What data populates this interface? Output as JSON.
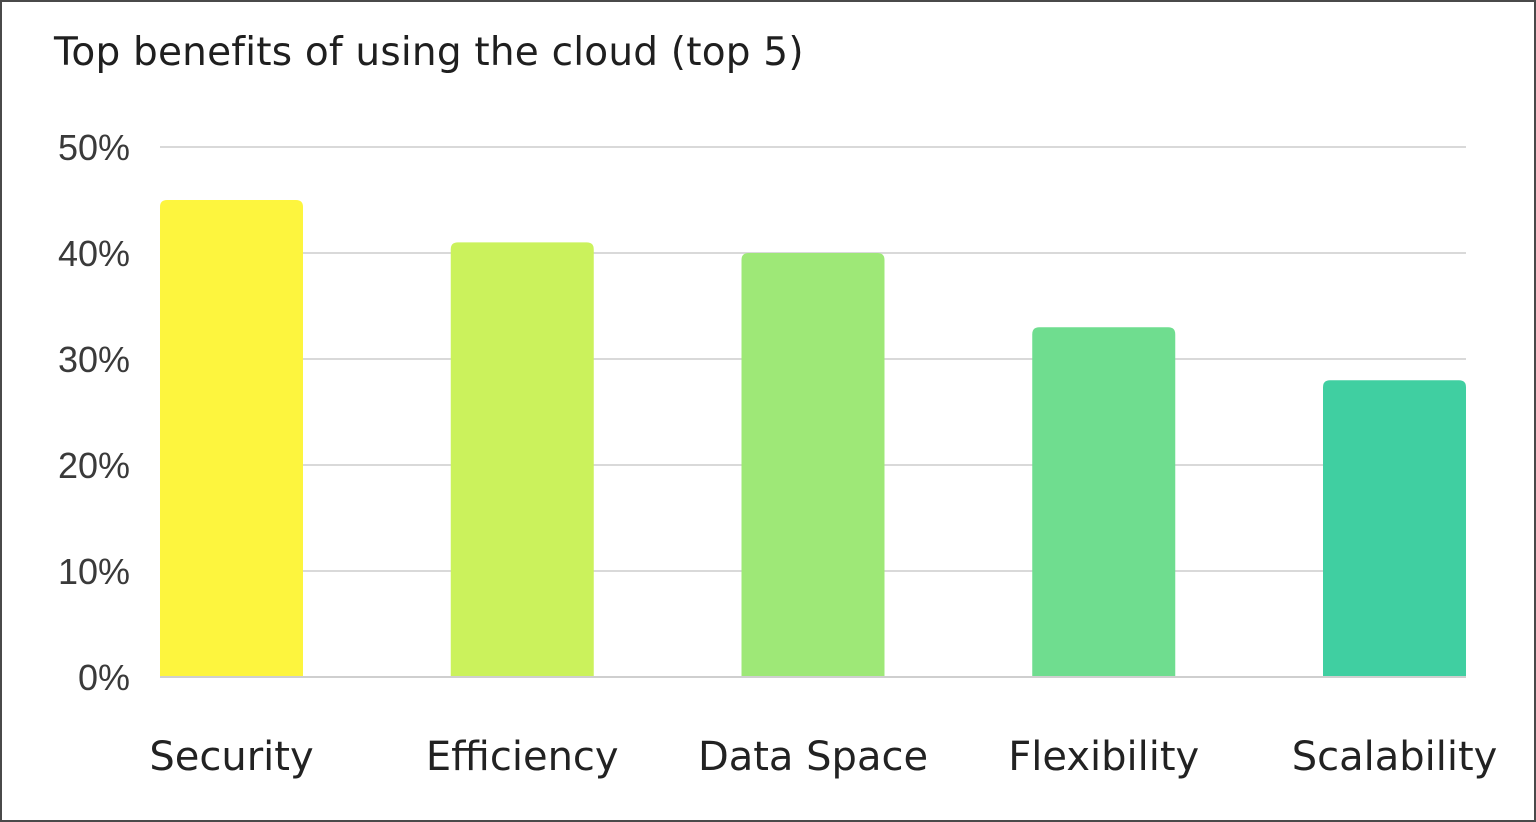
{
  "chart_data": {
    "type": "bar",
    "title": "Top benefits of using the cloud (top 5)",
    "xlabel": "",
    "ylabel": "",
    "categories": [
      "Security",
      "Efficiency",
      "Data Space",
      "Flexibility",
      "Scalability"
    ],
    "values": [
      45,
      41,
      40,
      33,
      28
    ],
    "colors": [
      "#fdf53e",
      "#cbf25c",
      "#9ee877",
      "#6fdd8f",
      "#40cfa1"
    ],
    "ylim": [
      0,
      50
    ],
    "yticks": [
      0,
      10,
      20,
      30,
      40,
      50
    ],
    "ytick_labels": [
      "0%",
      "10%",
      "20%",
      "30%",
      "40%",
      "50%"
    ],
    "grid": true,
    "legend": "none"
  }
}
